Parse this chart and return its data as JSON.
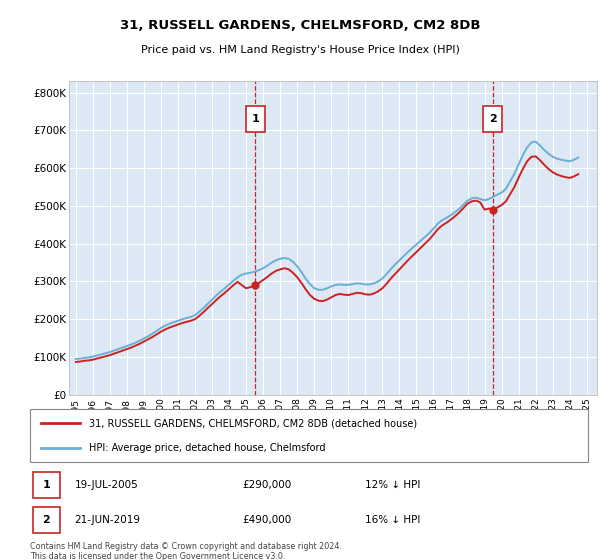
{
  "title_line1": "31, RUSSELL GARDENS, CHELMSFORD, CM2 8DB",
  "title_line2": "Price paid vs. HM Land Registry's House Price Index (HPI)",
  "ylabel_ticks": [
    "£0",
    "£100K",
    "£200K",
    "£300K",
    "£400K",
    "£500K",
    "£600K",
    "£700K",
    "£800K"
  ],
  "ytick_values": [
    0,
    100000,
    200000,
    300000,
    400000,
    500000,
    600000,
    700000,
    800000
  ],
  "ylim": [
    0,
    830000
  ],
  "xlim_start": 1994.6,
  "xlim_end": 2025.6,
  "xtick_years": [
    1995,
    1996,
    1997,
    1998,
    1999,
    2000,
    2001,
    2002,
    2003,
    2004,
    2005,
    2006,
    2007,
    2008,
    2009,
    2010,
    2011,
    2012,
    2013,
    2014,
    2015,
    2016,
    2017,
    2018,
    2019,
    2020,
    2021,
    2022,
    2023,
    2024,
    2025
  ],
  "bg_color": "#dce9f5",
  "grid_color": "#ffffff",
  "hpi_color": "#6baed6",
  "price_color": "#cc2222",
  "vline_color": "#cc2222",
  "purchase1_x": 2005.54,
  "purchase1_y": 290000,
  "purchase2_x": 2019.47,
  "purchase2_y": 490000,
  "legend_label1": "31, RUSSELL GARDENS, CHELMSFORD, CM2 8DB (detached house)",
  "legend_label2": "HPI: Average price, detached house, Chelmsford",
  "table_row1_num": "1",
  "table_row1_date": "19-JUL-2005",
  "table_row1_price": "£290,000",
  "table_row1_hpi": "12% ↓ HPI",
  "table_row2_num": "2",
  "table_row2_date": "21-JUN-2019",
  "table_row2_price": "£490,000",
  "table_row2_hpi": "16% ↓ HPI",
  "footer_text": "Contains HM Land Registry data © Crown copyright and database right 2024.\nThis data is licensed under the Open Government Licence v3.0.",
  "hpi_x": [
    1995.0,
    1995.25,
    1995.5,
    1995.75,
    1996.0,
    1996.25,
    1996.5,
    1996.75,
    1997.0,
    1997.25,
    1997.5,
    1997.75,
    1998.0,
    1998.25,
    1998.5,
    1998.75,
    1999.0,
    1999.25,
    1999.5,
    1999.75,
    2000.0,
    2000.25,
    2000.5,
    2000.75,
    2001.0,
    2001.25,
    2001.5,
    2001.75,
    2002.0,
    2002.25,
    2002.5,
    2002.75,
    2003.0,
    2003.25,
    2003.5,
    2003.75,
    2004.0,
    2004.25,
    2004.5,
    2004.75,
    2005.0,
    2005.25,
    2005.5,
    2005.75,
    2006.0,
    2006.25,
    2006.5,
    2006.75,
    2007.0,
    2007.25,
    2007.5,
    2007.75,
    2008.0,
    2008.25,
    2008.5,
    2008.75,
    2009.0,
    2009.25,
    2009.5,
    2009.75,
    2010.0,
    2010.25,
    2010.5,
    2010.75,
    2011.0,
    2011.25,
    2011.5,
    2011.75,
    2012.0,
    2012.25,
    2012.5,
    2012.75,
    2013.0,
    2013.25,
    2013.5,
    2013.75,
    2014.0,
    2014.25,
    2014.5,
    2014.75,
    2015.0,
    2015.25,
    2015.5,
    2015.75,
    2016.0,
    2016.25,
    2016.5,
    2016.75,
    2017.0,
    2017.25,
    2017.5,
    2017.75,
    2018.0,
    2018.25,
    2018.5,
    2018.75,
    2019.0,
    2019.25,
    2019.5,
    2019.75,
    2020.0,
    2020.25,
    2020.5,
    2020.75,
    2021.0,
    2021.25,
    2021.5,
    2021.75,
    2022.0,
    2022.25,
    2022.5,
    2022.75,
    2023.0,
    2023.25,
    2023.5,
    2023.75,
    2024.0,
    2024.25,
    2024.5
  ],
  "hpi_y": [
    95000,
    96000,
    97500,
    99000,
    101000,
    104000,
    107000,
    110000,
    113000,
    117000,
    121000,
    125000,
    129000,
    133000,
    138000,
    143000,
    149000,
    155000,
    162000,
    169000,
    177000,
    183000,
    188000,
    192000,
    196000,
    200000,
    203000,
    206000,
    211000,
    220000,
    230000,
    241000,
    252000,
    263000,
    273000,
    282000,
    292000,
    302000,
    311000,
    318000,
    321000,
    323000,
    326000,
    330000,
    335000,
    342000,
    350000,
    356000,
    360000,
    362000,
    360000,
    352000,
    340000,
    325000,
    307000,
    293000,
    282000,
    278000,
    278000,
    282000,
    287000,
    291000,
    292000,
    291000,
    291000,
    293000,
    295000,
    294000,
    292000,
    292000,
    295000,
    300000,
    308000,
    320000,
    333000,
    345000,
    356000,
    367000,
    378000,
    388000,
    398000,
    408000,
    418000,
    428000,
    440000,
    453000,
    462000,
    468000,
    475000,
    483000,
    492000,
    503000,
    514000,
    520000,
    522000,
    518000,
    515000,
    518000,
    524000,
    530000,
    535000,
    545000,
    565000,
    585000,
    610000,
    635000,
    655000,
    668000,
    670000,
    660000,
    648000,
    638000,
    630000,
    625000,
    622000,
    620000,
    618000,
    622000,
    628000
  ],
  "price_x": [
    1995.0,
    1995.25,
    1995.5,
    1995.75,
    1996.0,
    1996.25,
    1996.5,
    1996.75,
    1997.0,
    1997.25,
    1997.5,
    1997.75,
    1998.0,
    1998.25,
    1998.5,
    1998.75,
    1999.0,
    1999.25,
    1999.5,
    1999.75,
    2000.0,
    2000.25,
    2000.5,
    2000.75,
    2001.0,
    2001.25,
    2001.5,
    2001.75,
    2002.0,
    2002.25,
    2002.5,
    2002.75,
    2003.0,
    2003.25,
    2003.5,
    2003.75,
    2004.0,
    2004.25,
    2004.5,
    2004.75,
    2005.0,
    2005.25,
    2005.54,
    2005.75,
    2006.0,
    2006.25,
    2006.5,
    2006.75,
    2007.0,
    2007.25,
    2007.5,
    2007.75,
    2008.0,
    2008.25,
    2008.5,
    2008.75,
    2009.0,
    2009.25,
    2009.5,
    2009.75,
    2010.0,
    2010.25,
    2010.5,
    2010.75,
    2011.0,
    2011.25,
    2011.5,
    2011.75,
    2012.0,
    2012.25,
    2012.5,
    2012.75,
    2013.0,
    2013.25,
    2013.5,
    2013.75,
    2014.0,
    2014.25,
    2014.5,
    2014.75,
    2015.0,
    2015.25,
    2015.5,
    2015.75,
    2016.0,
    2016.25,
    2016.5,
    2016.75,
    2017.0,
    2017.25,
    2017.5,
    2017.75,
    2018.0,
    2018.25,
    2018.5,
    2018.75,
    2019.0,
    2019.25,
    2019.47,
    2019.75,
    2020.0,
    2020.25,
    2020.5,
    2020.75,
    2021.0,
    2021.25,
    2021.5,
    2021.75,
    2022.0,
    2022.25,
    2022.5,
    2022.75,
    2023.0,
    2023.25,
    2023.5,
    2023.75,
    2024.0,
    2024.25,
    2024.5
  ],
  "price_y": [
    87000,
    88000,
    90000,
    91000,
    93000,
    96000,
    99000,
    102000,
    105000,
    109000,
    113000,
    117000,
    121000,
    125000,
    130000,
    135000,
    141000,
    147000,
    153000,
    160000,
    167000,
    173000,
    178000,
    182000,
    186000,
    190000,
    193000,
    196000,
    200000,
    209000,
    219000,
    230000,
    240000,
    251000,
    261000,
    270000,
    280000,
    290000,
    299000,
    290000,
    282000,
    285000,
    290000,
    296000,
    304000,
    312000,
    321000,
    328000,
    332000,
    335000,
    332000,
    323000,
    311000,
    296000,
    279000,
    264000,
    254000,
    249000,
    248000,
    252000,
    258000,
    264000,
    267000,
    265000,
    264000,
    267000,
    270000,
    269000,
    266000,
    265000,
    268000,
    274000,
    282000,
    294000,
    308000,
    320000,
    332000,
    344000,
    356000,
    367000,
    378000,
    389000,
    400000,
    411000,
    424000,
    438000,
    448000,
    455000,
    463000,
    472000,
    482000,
    494000,
    506000,
    512000,
    514000,
    509000,
    490000,
    493000,
    490000,
    496000,
    502000,
    512000,
    531000,
    550000,
    575000,
    598000,
    618000,
    630000,
    631000,
    621000,
    609000,
    598000,
    589000,
    583000,
    579000,
    576000,
    574000,
    578000,
    584000
  ]
}
